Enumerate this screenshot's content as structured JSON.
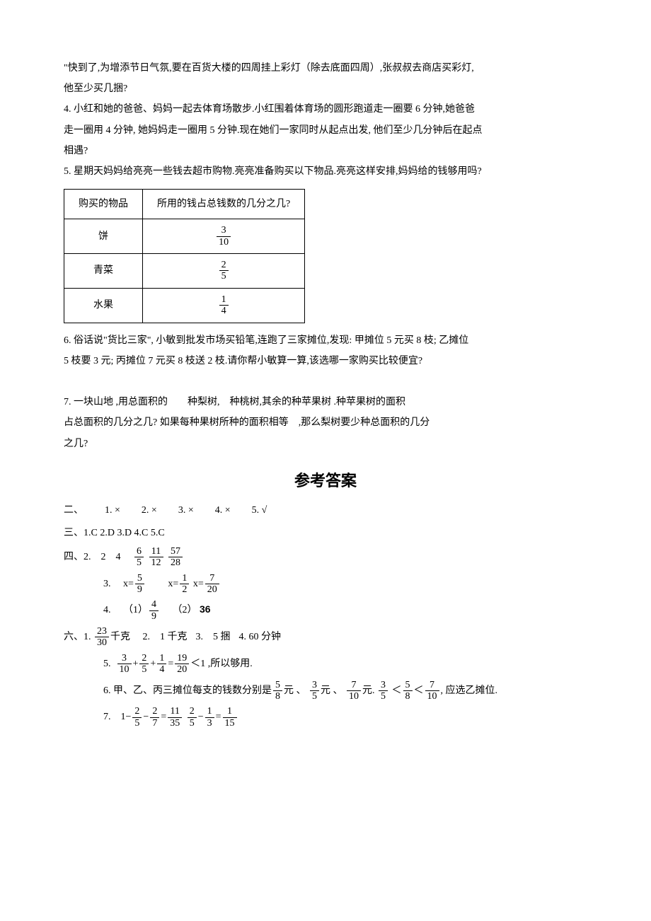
{
  "q3_line1": "\"快到了,为增添节日气氛,要在百货大楼的四周挂上彩灯（除去底面四周）,张叔叔去商店买彩灯,",
  "q3_line2": "他至少买几捆?",
  "q4_line1": "4. 小红和她的爸爸、妈妈一起去体育场散步.小红围着体育场的圆形跑道走一圈要 6 分钟,她爸爸",
  "q4_line2": "走一圈用 4 分钟, 她妈妈走一圈用 5 分钟.现在她们一家同时从起点出发, 他们至少几分钟后在起点",
  "q4_line3": "相遇?",
  "q5_line1": "5. 星期天妈妈给亮亮一些钱去超市购物.亮亮准备购买以下物品.亮亮这样安排,妈妈给的钱够用吗?",
  "table": {
    "headers": [
      "购买的物品",
      "所用的钱占总钱数的几分之几?"
    ],
    "rows": [
      {
        "item": "饼",
        "frac": {
          "n": "3",
          "d": "10"
        }
      },
      {
        "item": "青菜",
        "frac": {
          "n": "2",
          "d": "5"
        }
      },
      {
        "item": "水果",
        "frac": {
          "n": "1",
          "d": "4"
        }
      }
    ]
  },
  "q6_line1": "6. 俗话说\"货比三家\", 小敏到批发市场买铅笔,连跑了三家摊位,发现: 甲摊位 5 元买 8 枝; 乙摊位",
  "q6_line2": "5 枝要 3 元; 丙摊位 7 元买 8 枝送 2 枝.请你帮小敏算一算,该选哪一家购买比较便宜?",
  "q7_line1": "7. 一块山地 ,用总面积的  种梨树, 种桃树,其余的种苹果树 .种苹果树的面积",
  "q7_line2": "占总面积的几分之几? 如果每种果树所种的面积相等 ,那么梨树要少种总面积的几分",
  "q7_line3": "之几?",
  "answer_title": "参考答案",
  "a2": {
    "prefix": "二、",
    "items": [
      "1. ×",
      "2. ×",
      "3. ×",
      "4. ×",
      "5. √"
    ]
  },
  "a3": "三、1.C 2.D 3.D 4.C 5.C",
  "a4": {
    "prefix": "四、",
    "l2": {
      "pre": "2. 2 4",
      "fracs": [
        {
          "n": "6",
          "d": "5"
        },
        {
          "n": "11",
          "d": "12"
        },
        {
          "n": "57",
          "d": "28"
        }
      ]
    },
    "l3": {
      "label": "3.",
      "eq1": {
        "pre": "x=",
        "n": "5",
        "d": "9"
      },
      "eq2": {
        "pre": "x=",
        "n": "1",
        "d": "2"
      },
      "eq3": {
        "pre": "x=",
        "n": "7",
        "d": "20"
      }
    },
    "l4": {
      "label": "4.",
      "p1pre": "（1）",
      "p1frac": {
        "n": "4",
        "d": "9"
      },
      "p2": "（2）  ",
      "p2val": "36"
    }
  },
  "a6": {
    "prefix": "六、",
    "l1": {
      "label": "1.",
      "frac": {
        "n": "23",
        "d": "30"
      },
      "unit": "千克",
      "rest": [
        "2. 1 千克",
        "3. 5 捆",
        "4. 60 分钟"
      ]
    },
    "l5": {
      "label": "5.",
      "f1": {
        "n": "3",
        "d": "10"
      },
      "op1": "+",
      "f2": {
        "n": "2",
        "d": "5"
      },
      "op2": "+",
      "f3": {
        "n": "1",
        "d": "4"
      },
      "eq": "=",
      "f4": {
        "n": "19",
        "d": "20"
      },
      "cmp": "＜1",
      "tail": " ,所以够用."
    },
    "l6": {
      "pre": "6. 甲、乙、丙三摊位每支的钱数分别是",
      "f1": {
        "n": "5",
        "d": "8"
      },
      "u1": "元 、 ",
      "f2": {
        "n": "3",
        "d": "5"
      },
      "u2": "元  、 ",
      "f3": {
        "n": "7",
        "d": "10"
      },
      "u3": "元. ",
      "cf1": {
        "n": "3",
        "d": "5"
      },
      "lt1": " ＜",
      "cf2": {
        "n": "5",
        "d": "8"
      },
      "lt2": "＜",
      "cf3": {
        "n": "7",
        "d": "10"
      },
      "tail": ", 应选乙摊位."
    },
    "l7": {
      "label": "7. ",
      "pre": "1−",
      "f1": {
        "n": "2",
        "d": "5"
      },
      "op1": "−",
      "f2": {
        "n": "2",
        "d": "7"
      },
      "eq1": "=",
      "f3": {
        "n": "11",
        "d": "35"
      },
      "sp": "  ",
      "f4": {
        "n": "2",
        "d": "5"
      },
      "op2": "−",
      "f5": {
        "n": "1",
        "d": "3"
      },
      "eq2": "=",
      "f6": {
        "n": "1",
        "d": "15"
      }
    }
  }
}
